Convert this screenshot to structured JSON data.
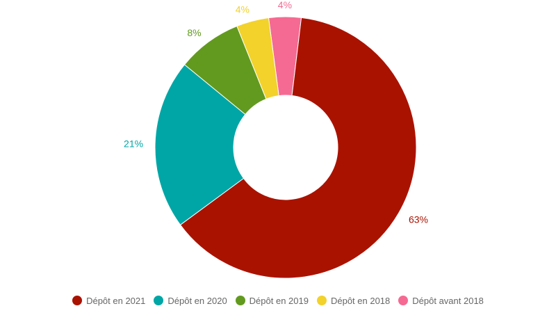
{
  "chart_data": {
    "type": "pie",
    "variant": "donut",
    "title": "",
    "categories": [
      "Dépôt en 2021",
      "Dépôt en 2020",
      "Dépôt en 2019",
      "Dépôt en 2018",
      "Dépôt avant 2018"
    ],
    "values": [
      63,
      21,
      8,
      4,
      4
    ],
    "labels": [
      "63%",
      "21%",
      "8%",
      "4%",
      "4%"
    ],
    "colors": [
      "#aa1200",
      "#00a6a6",
      "#629a1f",
      "#f2d22b",
      "#f56a92"
    ],
    "legend_position": "bottom"
  }
}
